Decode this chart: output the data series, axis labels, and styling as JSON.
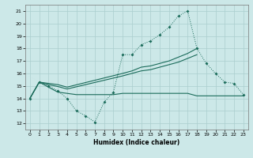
{
  "xlabel": "Humidex (Indice chaleur)",
  "bg_color": "#cce8e8",
  "line_color": "#1a6b5a",
  "grid_color": "#aacece",
  "xlim": [
    -0.5,
    23.5
  ],
  "ylim": [
    11.5,
    21.5
  ],
  "xticks": [
    0,
    1,
    2,
    3,
    4,
    5,
    6,
    7,
    8,
    9,
    10,
    11,
    12,
    13,
    14,
    15,
    16,
    17,
    18,
    19,
    20,
    21,
    22,
    23
  ],
  "yticks": [
    12,
    13,
    14,
    15,
    16,
    17,
    18,
    19,
    20,
    21
  ],
  "jagged": {
    "x": [
      0,
      1,
      2,
      3,
      4,
      5,
      6,
      7,
      8,
      9,
      10,
      11,
      12,
      13,
      14,
      15,
      16,
      17,
      18,
      19,
      20,
      21,
      22,
      23
    ],
    "y": [
      14.0,
      15.3,
      15.0,
      14.6,
      14.0,
      13.0,
      12.6,
      12.1,
      13.7,
      14.5,
      17.5,
      17.5,
      18.3,
      18.6,
      19.1,
      19.7,
      20.6,
      21.0,
      18.0,
      16.8,
      16.0,
      15.3,
      15.2,
      14.3
    ]
  },
  "line_upper": {
    "x": [
      0,
      1,
      2,
      3,
      4,
      10,
      11,
      12,
      13,
      14,
      15,
      16,
      17,
      18
    ],
    "y": [
      14.0,
      15.3,
      15.2,
      15.1,
      14.9,
      16.0,
      16.2,
      16.5,
      16.6,
      16.8,
      17.0,
      17.3,
      17.6,
      18.0
    ]
  },
  "line_mid": {
    "x": [
      0,
      1,
      2,
      3,
      4,
      10,
      11,
      12,
      13,
      14,
      15,
      16,
      17,
      18
    ],
    "y": [
      14.0,
      15.3,
      15.1,
      14.95,
      14.75,
      15.8,
      16.0,
      16.2,
      16.3,
      16.5,
      16.7,
      16.9,
      17.2,
      17.5
    ]
  },
  "line_lower": {
    "x": [
      0,
      1,
      2,
      3,
      4,
      5,
      6,
      7,
      8,
      9,
      10,
      11,
      12,
      13,
      14,
      15,
      16,
      17,
      18,
      19,
      20,
      21,
      22,
      23
    ],
    "y": [
      14.0,
      15.3,
      14.9,
      14.5,
      14.4,
      14.3,
      14.3,
      14.3,
      14.3,
      14.3,
      14.4,
      14.4,
      14.4,
      14.4,
      14.4,
      14.4,
      14.4,
      14.4,
      14.2,
      14.2,
      14.2,
      14.2,
      14.2,
      14.2
    ]
  }
}
